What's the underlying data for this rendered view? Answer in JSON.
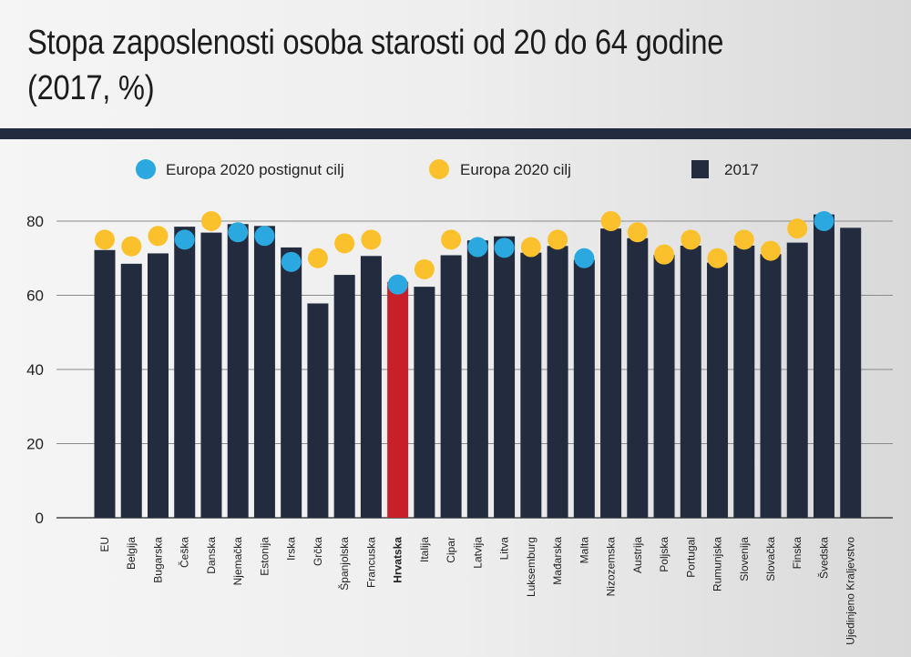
{
  "title": "Stopa zaposlenosti osoba starosti od 20 do 64 godine (2017, %)",
  "colors": {
    "bar": "#232b3e",
    "highlight_bar": "#c8202a",
    "achieved_dot": "#2aa8df",
    "target_dot": "#fbc12d",
    "title_bar": "#232b3e"
  },
  "chart_data": {
    "type": "bar",
    "title": "Stopa zaposlenosti osoba starosti od 20 do 64 godine (2017, %)",
    "xlabel": "",
    "ylabel": "",
    "ylim": [
      0,
      80
    ],
    "yticks": [
      0,
      20,
      40,
      60,
      80
    ],
    "grid": true,
    "legend_position": "top",
    "highlight_category": "Hrvatska",
    "categories": [
      "EU",
      "Belgija",
      "Bugarska",
      "Češka",
      "Danska",
      "Njemačka",
      "Estonija",
      "Irska",
      "Grčka",
      "Španjolska",
      "Francuska",
      "Hrvatska",
      "Italija",
      "Cipar",
      "Latvija",
      "Litva",
      "Luksemburg",
      "Mađarska",
      "Malta",
      "Nizozemska",
      "Austrija",
      "Poljska",
      "Portugal",
      "Rumunjska",
      "Slovenija",
      "Slovačka",
      "Finska",
      "Švedska",
      "Ujedinjeno Kraljevstvo"
    ],
    "series": [
      {
        "name": "2017",
        "kind": "bar",
        "values": [
          72.2,
          68.5,
          71.3,
          78.5,
          76.9,
          79.2,
          78.7,
          72.9,
          57.8,
          65.5,
          70.6,
          63.6,
          62.3,
          70.8,
          74.8,
          75.9,
          71.5,
          73.3,
          69.6,
          78.0,
          75.4,
          70.9,
          73.4,
          68.8,
          73.4,
          71.1,
          74.2,
          81.8,
          78.2
        ]
      },
      {
        "name": "Europa 2020 postignut cilj",
        "kind": "dot",
        "color": "achieved",
        "points": [
          {
            "category": "Češka",
            "value": 75
          },
          {
            "category": "Njemačka",
            "value": 77
          },
          {
            "category": "Estonija",
            "value": 76
          },
          {
            "category": "Irska",
            "value": 69
          },
          {
            "category": "Hrvatska",
            "value": 62.9
          },
          {
            "category": "Latvija",
            "value": 73
          },
          {
            "category": "Litva",
            "value": 72.8
          },
          {
            "category": "Malta",
            "value": 70
          },
          {
            "category": "Švedska",
            "value": 80
          }
        ]
      },
      {
        "name": "Europa 2020 cilj",
        "kind": "dot",
        "color": "target",
        "points": [
          {
            "category": "EU",
            "value": 75
          },
          {
            "category": "Belgija",
            "value": 73.2
          },
          {
            "category": "Bugarska",
            "value": 76
          },
          {
            "category": "Danska",
            "value": 80
          },
          {
            "category": "Grčka",
            "value": 70
          },
          {
            "category": "Španjolska",
            "value": 74
          },
          {
            "category": "Francuska",
            "value": 75
          },
          {
            "category": "Italija",
            "value": 67
          },
          {
            "category": "Cipar",
            "value": 75
          },
          {
            "category": "Luksemburg",
            "value": 73
          },
          {
            "category": "Mađarska",
            "value": 75
          },
          {
            "category": "Nizozemska",
            "value": 80
          },
          {
            "category": "Austrija",
            "value": 77
          },
          {
            "category": "Poljska",
            "value": 71
          },
          {
            "category": "Portugal",
            "value": 75
          },
          {
            "category": "Rumunjska",
            "value": 70
          },
          {
            "category": "Slovenija",
            "value": 75
          },
          {
            "category": "Slovačka",
            "value": 72
          },
          {
            "category": "Finska",
            "value": 78
          }
        ]
      }
    ],
    "legend": [
      {
        "label": "Europa 2020 postignut cilj",
        "marker": "dot",
        "color": "achieved"
      },
      {
        "label": "Europa 2020 cilj",
        "marker": "dot",
        "color": "target"
      },
      {
        "label": "2017",
        "marker": "square",
        "color": "bar"
      }
    ]
  }
}
